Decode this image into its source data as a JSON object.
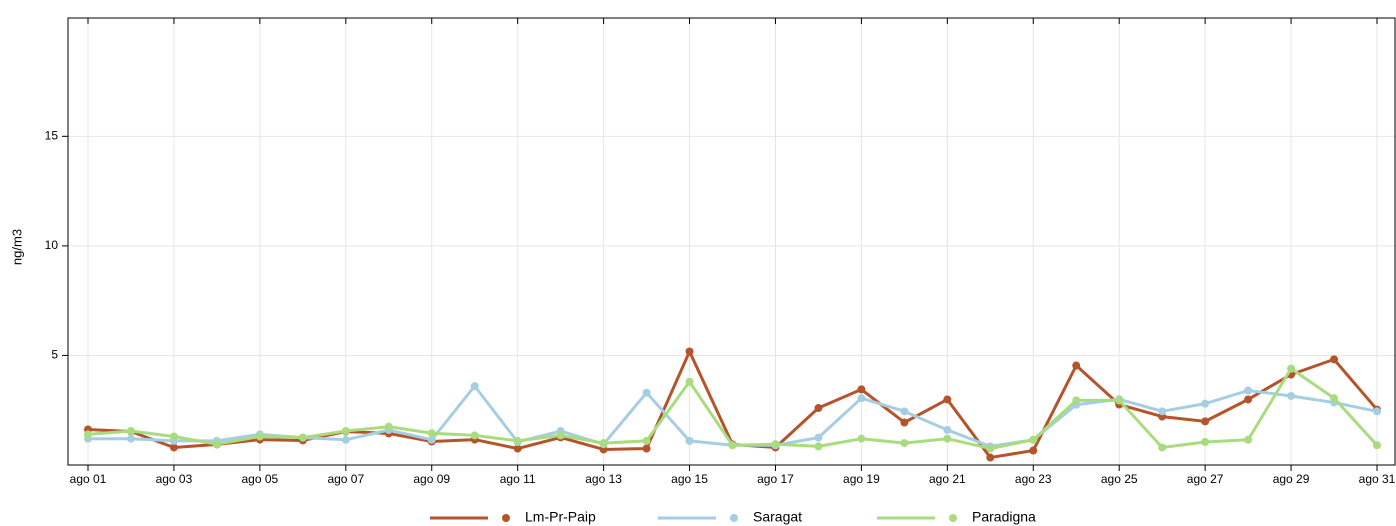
{
  "chart_data": {
    "type": "line",
    "y_label": "ng/m3",
    "categories": [
      "ago 01",
      null,
      "ago 03",
      null,
      "ago 05",
      null,
      "ago 07",
      null,
      "ago 09",
      null,
      "ago 11",
      null,
      "ago 13",
      null,
      "ago 15",
      null,
      "ago 17",
      null,
      "ago 19",
      null,
      "ago 21",
      null,
      "ago 23",
      null,
      "ago 25",
      null,
      "ago 27",
      null,
      "ago 29",
      null,
      "ago 31"
    ],
    "series": [
      {
        "name": "Lm-Pr-Paip",
        "color": "#b5532a",
        "values": [
          1.62,
          1.53,
          0.8,
          0.94,
          1.16,
          1.12,
          1.53,
          1.44,
          1.07,
          1.16,
          0.75,
          1.26,
          0.71,
          0.75,
          5.18,
          0.94,
          0.8,
          2.6,
          3.45,
          1.94,
          2.99,
          0.34,
          0.66,
          4.54,
          2.76,
          2.21,
          1.99,
          2.99,
          4.13,
          4.82,
          2.53
        ]
      },
      {
        "name": "Saragat",
        "color": "#a6cee3",
        "values": [
          1.2,
          1.2,
          1.1,
          1.1,
          1.4,
          1.25,
          1.15,
          1.6,
          1.15,
          3.6,
          1.05,
          1.55,
          0.95,
          3.3,
          1.1,
          0.9,
          0.9,
          1.25,
          3.05,
          2.45,
          1.6,
          0.85,
          1.15,
          2.75,
          3.0,
          2.45,
          2.8,
          3.4,
          3.15,
          2.85,
          2.45
        ]
      },
      {
        "name": "Paradigna",
        "color": "#a9dc7e",
        "values": [
          1.4,
          1.55,
          1.3,
          0.95,
          1.3,
          1.25,
          1.55,
          1.75,
          1.45,
          1.35,
          1.1,
          1.35,
          1.0,
          1.1,
          3.8,
          0.9,
          0.95,
          0.85,
          1.2,
          1.0,
          1.2,
          0.75,
          1.15,
          2.95,
          2.95,
          0.8,
          1.05,
          1.15,
          4.4,
          3.05,
          0.9
        ]
      }
    ],
    "ylim": [
      0,
      20.4
    ],
    "yticks": [
      5,
      10,
      15
    ],
    "grid": true
  }
}
